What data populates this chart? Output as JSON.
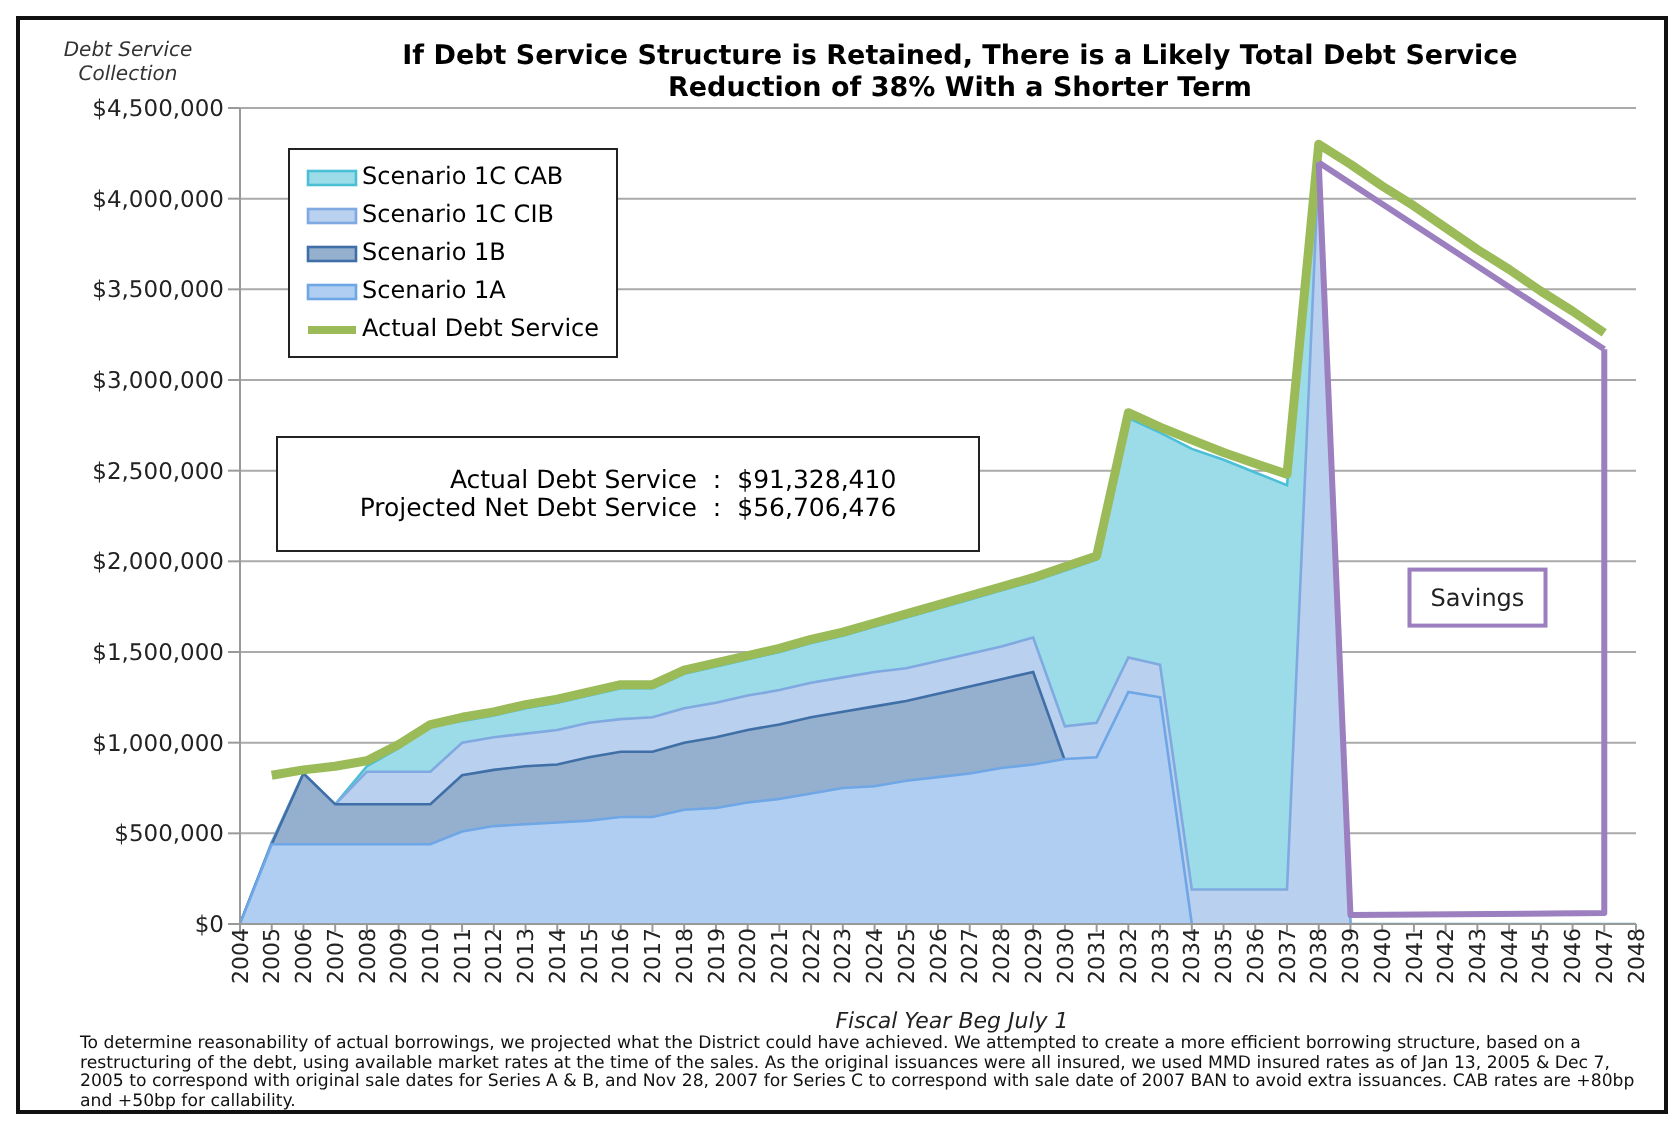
{
  "chart_data": {
    "type": "area",
    "title": "If Debt Service Structure is Retained, There is a Likely Total Debt Service\nReduction of 38% With a Shorter Term",
    "ylabel": "Debt Service\nCollection",
    "xlabel": "Fiscal Year Beg July 1",
    "x": [
      2004,
      2005,
      2006,
      2007,
      2008,
      2009,
      2010,
      2011,
      2012,
      2013,
      2014,
      2015,
      2016,
      2017,
      2018,
      2019,
      2020,
      2021,
      2022,
      2023,
      2024,
      2025,
      2026,
      2027,
      2028,
      2029,
      2030,
      2031,
      2032,
      2033,
      2034,
      2035,
      2036,
      2037,
      2038,
      2039,
      2040,
      2041,
      2042,
      2043,
      2044,
      2045,
      2046,
      2047,
      2048
    ],
    "series": [
      {
        "name": "Scenario 1C CAB",
        "color": "#4bbfd6",
        "values": [
          0,
          450000,
          830000,
          660000,
          870000,
          970000,
          1090000,
          1120000,
          1150000,
          1190000,
          1220000,
          1260000,
          1300000,
          1300000,
          1380000,
          1420000,
          1460000,
          1500000,
          1550000,
          1590000,
          1640000,
          1690000,
          1740000,
          1790000,
          1840000,
          1890000,
          1950000,
          2010000,
          2790000,
          2710000,
          2620000,
          2560000,
          2490000,
          2420000,
          4250000,
          0,
          0,
          0,
          0,
          0,
          0,
          0,
          0,
          0,
          0
        ]
      },
      {
        "name": "Scenario 1C CIB",
        "color": "#7fa9e0",
        "values": [
          0,
          450000,
          830000,
          660000,
          840000,
          840000,
          840000,
          1000000,
          1030000,
          1050000,
          1070000,
          1110000,
          1130000,
          1140000,
          1190000,
          1220000,
          1260000,
          1290000,
          1330000,
          1360000,
          1390000,
          1410000,
          1450000,
          1490000,
          1530000,
          1580000,
          1090000,
          1110000,
          1470000,
          1430000,
          190000,
          190000,
          190000,
          190000,
          4200000,
          0,
          null,
          null,
          null,
          null,
          null,
          null,
          null,
          null,
          null
        ]
      },
      {
        "name": "Scenario 1B",
        "color": "#3f6fa6",
        "values": [
          0,
          440000,
          830000,
          660000,
          660000,
          660000,
          660000,
          820000,
          850000,
          870000,
          880000,
          920000,
          950000,
          950000,
          1000000,
          1030000,
          1070000,
          1100000,
          1140000,
          1170000,
          1200000,
          1230000,
          1270000,
          1310000,
          1350000,
          1390000,
          900000,
          null,
          null,
          null,
          null,
          null,
          null,
          null,
          null,
          null,
          null,
          null,
          null,
          null,
          null,
          null,
          null,
          null,
          null
        ]
      },
      {
        "name": "Scenario 1A",
        "color": "#6fa6e6",
        "values": [
          0,
          440000,
          440000,
          440000,
          440000,
          440000,
          440000,
          510000,
          540000,
          550000,
          560000,
          570000,
          590000,
          590000,
          630000,
          640000,
          670000,
          690000,
          720000,
          750000,
          760000,
          790000,
          810000,
          830000,
          860000,
          880000,
          910000,
          920000,
          1280000,
          1250000,
          0,
          null,
          null,
          null,
          null,
          null,
          null,
          null,
          null,
          null,
          null,
          null,
          null,
          null,
          null
        ]
      },
      {
        "name": "Actual Debt Service",
        "type": "line",
        "color": "#9bbb59",
        "values": [
          null,
          820000,
          850000,
          870000,
          900000,
          990000,
          1100000,
          1140000,
          1170000,
          1210000,
          1240000,
          1280000,
          1320000,
          1320000,
          1400000,
          1440000,
          1480000,
          1520000,
          1570000,
          1610000,
          1660000,
          1710000,
          1760000,
          1810000,
          1860000,
          1910000,
          1970000,
          2030000,
          2820000,
          2740000,
          2670000,
          2600000,
          2540000,
          2480000,
          4300000,
          4190000,
          4070000,
          3960000,
          3840000,
          3720000,
          3610000,
          3490000,
          3380000,
          3260000,
          null
        ]
      },
      {
        "type": "line",
        "color": "#9b7fbf",
        "x": [
          2038,
          2047
        ],
        "values": [
          4200000,
          3170000
        ]
      },
      {
        "type": "line",
        "color": "#9b7fbf",
        "x": [
          2038,
          2039,
          2047,
          2047
        ],
        "values": [
          4200000,
          50000,
          60000,
          3170000
        ]
      }
    ],
    "xlim": [
      2004,
      2048
    ],
    "xticks": [
      2004,
      2005,
      2006,
      2007,
      2008,
      2009,
      2010,
      2011,
      2012,
      2013,
      2014,
      2015,
      2016,
      2017,
      2018,
      2019,
      2020,
      2021,
      2022,
      2023,
      2024,
      2025,
      2026,
      2027,
      2028,
      2029,
      2030,
      2031,
      2032,
      2033,
      2034,
      2035,
      2036,
      2037,
      2038,
      2039,
      2040,
      2041,
      2042,
      2043,
      2044,
      2045,
      2046,
      2047,
      2048
    ],
    "ylim": [
      0,
      4500000
    ],
    "yticks": [
      {
        "value": 0,
        "label": "$0"
      },
      {
        "value": 500000,
        "label": "$500,000"
      },
      {
        "value": 1000000,
        "label": "$1,000,000"
      },
      {
        "value": 1500000,
        "label": "$1,500,000"
      },
      {
        "value": 2000000,
        "label": "$2,000,000"
      },
      {
        "value": 2500000,
        "label": "$2,500,000"
      },
      {
        "value": 3000000,
        "label": "$3,000,000"
      },
      {
        "value": 3500000,
        "label": "$3,500,000"
      },
      {
        "value": 4000000,
        "label": "$4,000,000"
      },
      {
        "value": 4500000,
        "label": "$4,500,000"
      }
    ],
    "grid": "y",
    "legend": "top left",
    "marker": "none",
    "annotations": [
      "Actual Debt Service : $91,328,410",
      "Projected Net Debt Service : $56,706,476",
      "Savings",
      "To determine reasonability of actual borrowings, we projected what the District could have achieved. We attempted to create a more efficient borrowing structure, based on a restructuring of the debt, using available market rates at the time of the sales. As the original issuances were all insured, we used MMD insured rates as of Jan 13, 2005 & Dec 7, 2005 to correspond with original sale dates for Series A & B, and Nov 28, 2007 for Series C to correspond with sale date of 2007 BAN to avoid extra issuances. CAB rates are +80bp and +50bp for callability."
    ]
  }
}
